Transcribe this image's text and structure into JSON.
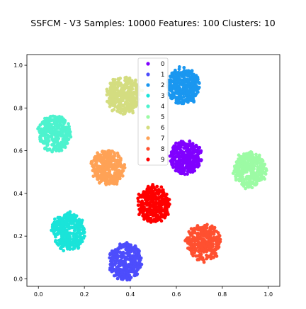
{
  "chart_data": {
    "type": "scatter",
    "title": "SSFCM - V3 Samples: 10000 Features: 100 Clusters: 10",
    "xlabel": "",
    "ylabel": "",
    "xlim": [
      -0.05,
      1.05
    ],
    "ylim": [
      -0.035,
      1.05
    ],
    "xticks": [
      0.0,
      0.2,
      0.4,
      0.6,
      0.8,
      1.0
    ],
    "yticks": [
      0.0,
      0.2,
      0.4,
      0.6,
      0.8,
      1.0
    ],
    "xtick_labels": [
      "0.0",
      "0.2",
      "0.4",
      "0.6",
      "0.8",
      "1.0"
    ],
    "ytick_labels": [
      "0.0",
      "0.2",
      "0.4",
      "0.6",
      "0.8",
      "1.0"
    ],
    "grid": false,
    "legend_position": "top-center",
    "series": [
      {
        "name": "0",
        "color": "#8000ff",
        "center": [
          0.64,
          0.57
        ],
        "spread": [
          0.068,
          0.078
        ]
      },
      {
        "name": "1",
        "color": "#4d4dfc",
        "center": [
          0.38,
          0.08
        ],
        "spread": [
          0.07,
          0.085
        ]
      },
      {
        "name": "2",
        "color": "#1a97f0",
        "center": [
          0.63,
          0.9
        ],
        "spread": [
          0.07,
          0.085
        ]
      },
      {
        "name": "3",
        "color": "#1ae4d9",
        "center": [
          0.13,
          0.22
        ],
        "spread": [
          0.072,
          0.085
        ]
      },
      {
        "name": "4",
        "color": "#4df3ce",
        "center": [
          0.07,
          0.68
        ],
        "spread": [
          0.07,
          0.085
        ]
      },
      {
        "name": "5",
        "color": "#9cfba4",
        "center": [
          0.92,
          0.51
        ],
        "spread": [
          0.07,
          0.082
        ]
      },
      {
        "name": "6",
        "color": "#d4dd80",
        "center": [
          0.37,
          0.86
        ],
        "spread": [
          0.072,
          0.085
        ]
      },
      {
        "name": "7",
        "color": "#ffa256",
        "center": [
          0.3,
          0.52
        ],
        "spread": [
          0.07,
          0.082
        ]
      },
      {
        "name": "8",
        "color": "#ff5030",
        "center": [
          0.72,
          0.17
        ],
        "spread": [
          0.075,
          0.085
        ]
      },
      {
        "name": "9",
        "color": "#ff0000",
        "center": [
          0.5,
          0.35
        ],
        "spread": [
          0.07,
          0.085
        ]
      }
    ]
  }
}
